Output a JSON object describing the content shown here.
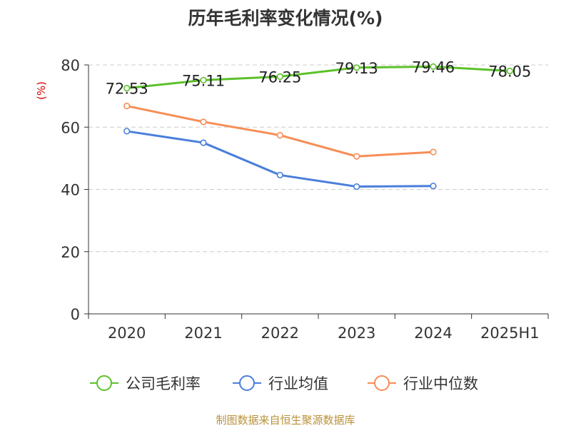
{
  "chart_data": {
    "type": "line",
    "title": "历年毛利率变化情况(%)",
    "ylabel": "(%)",
    "xlabel": "",
    "categories": [
      "2020",
      "2021",
      "2022",
      "2023",
      "2024",
      "2025H1"
    ],
    "ylim": [
      0,
      80
    ],
    "yticks": [
      0,
      20,
      40,
      60,
      80
    ],
    "grid": true,
    "legend_position": "bottom",
    "series": [
      {
        "name": "公司毛利率",
        "color": "#5cc12a",
        "values": [
          72.53,
          75.11,
          76.25,
          79.13,
          79.46,
          78.05
        ],
        "labels": [
          "72.53",
          "75.11",
          "76.25",
          "79.13",
          "79.46",
          "78.05"
        ]
      },
      {
        "name": "行业均值",
        "color": "#4a7fdb",
        "values": [
          58.7,
          55.0,
          44.6,
          40.9,
          41.1,
          null
        ]
      },
      {
        "name": "行业中位数",
        "color": "#f78d56",
        "values": [
          66.8,
          61.7,
          57.4,
          50.6,
          52.0,
          null
        ]
      }
    ]
  },
  "source_text": "制图数据来自恒生聚源数据库"
}
